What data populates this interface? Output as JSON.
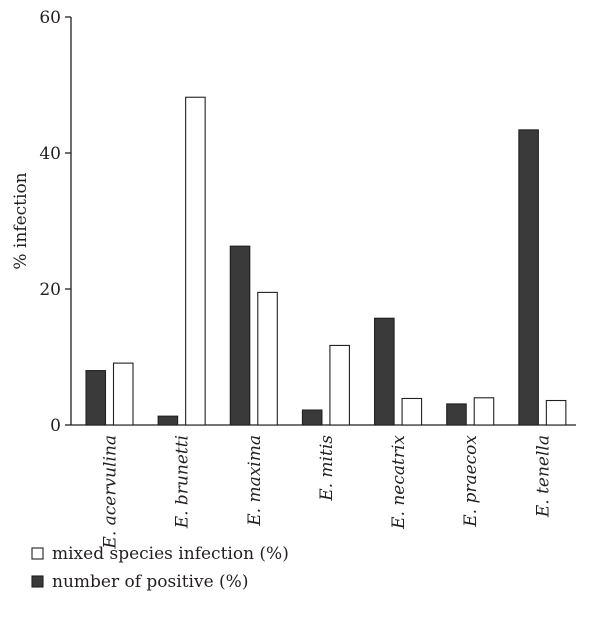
{
  "chart_data": {
    "type": "bar",
    "title": "",
    "xlabel": "",
    "ylabel": "% infection",
    "ylim": [
      0,
      60
    ],
    "yticks": [
      0,
      20,
      40,
      60
    ],
    "categories": [
      "E. acervulina",
      "E. brunetti",
      "E. maxima",
      "E. mitis",
      "E. necatrix",
      "E. praecox",
      "E. tenella"
    ],
    "series": [
      {
        "name": "number of positive (%)",
        "color": "#3a3a3a",
        "values": [
          8.0,
          1.3,
          26.3,
          2.2,
          15.7,
          3.1,
          43.4
        ]
      },
      {
        "name": "mixed species infection (%)",
        "color": "#ffffff",
        "values": [
          9.1,
          48.2,
          19.5,
          11.7,
          3.9,
          4.0,
          3.6
        ]
      }
    ],
    "legend": {
      "position": "bottom-left",
      "items": [
        {
          "label": "mixed species infection (%)",
          "fill": "#ffffff"
        },
        {
          "label": "number of positive (%)",
          "fill": "#3a3a3a"
        }
      ]
    },
    "grid": false
  }
}
